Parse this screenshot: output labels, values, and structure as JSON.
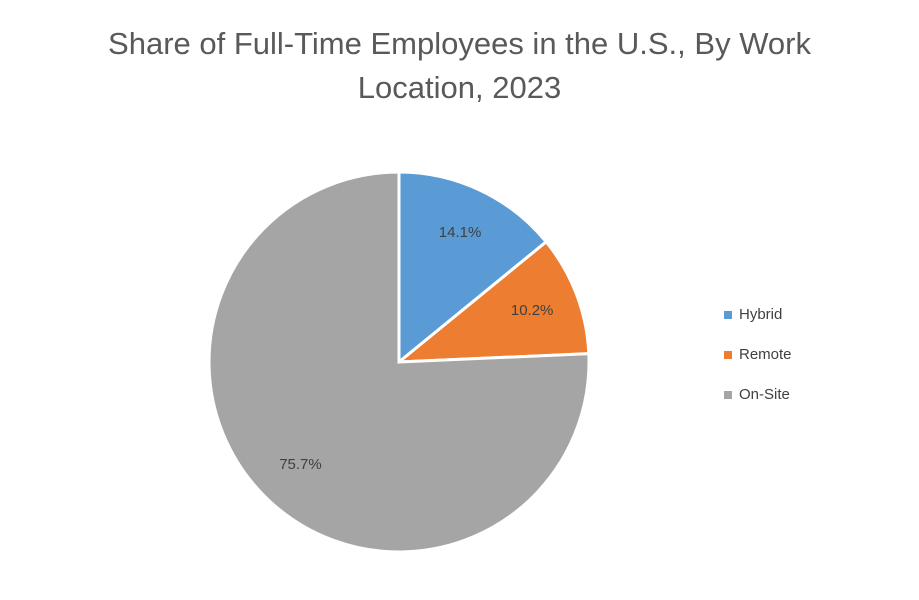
{
  "chart_data": {
    "type": "pie",
    "title": "Share of Full-Time Employees in the U.S., By Work Location, 2023",
    "categories": [
      "Hybrid",
      "Remote",
      "On-Site"
    ],
    "values": [
      14.1,
      10.2,
      75.7
    ],
    "value_labels": [
      "14.1%",
      "10.2%",
      "75.7%"
    ],
    "colors": [
      "#5b9bd5",
      "#ed7d31",
      "#a5a5a5"
    ],
    "legend": "right"
  }
}
